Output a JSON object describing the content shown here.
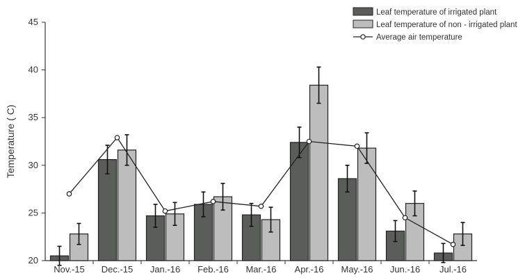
{
  "chart_data": {
    "type": "bar",
    "title": "",
    "xlabel": "",
    "ylabel": "Temperature ( C)",
    "ylim": [
      20,
      45
    ],
    "yticks": [
      20,
      25,
      30,
      35,
      40,
      45
    ],
    "grid": false,
    "legend_position": "top-right",
    "categories": [
      "Nov.-15",
      "Dec.-15",
      "Jan.-16",
      "Feb.-16",
      "Mar.-16",
      "Apr.-16",
      "May.-16",
      "Jun.-16",
      "Jul.-16"
    ],
    "series": [
      {
        "name": "Leaf temperature of irrigated plant",
        "kind": "bar",
        "color": "#5a5d5a",
        "values": [
          20.5,
          30.6,
          24.7,
          25.9,
          24.8,
          32.4,
          28.6,
          23.1,
          20.8
        ],
        "errors": [
          1.0,
          1.5,
          1.2,
          1.3,
          1.2,
          1.6,
          1.4,
          1.1,
          1.0
        ]
      },
      {
        "name": "Leaf temperature of non - irrigated plant",
        "kind": "bar",
        "color": "#bdbdbd",
        "values": [
          22.8,
          31.6,
          24.9,
          26.7,
          24.3,
          38.4,
          31.8,
          26.0,
          22.8
        ],
        "errors": [
          1.1,
          1.6,
          1.2,
          1.4,
          1.3,
          1.9,
          1.6,
          1.3,
          1.2
        ]
      },
      {
        "name": "Average air temperature",
        "kind": "line",
        "color": "#222222",
        "values": [
          27.0,
          32.9,
          25.2,
          26.2,
          25.7,
          32.5,
          32.0,
          24.5,
          21.7
        ]
      }
    ]
  }
}
